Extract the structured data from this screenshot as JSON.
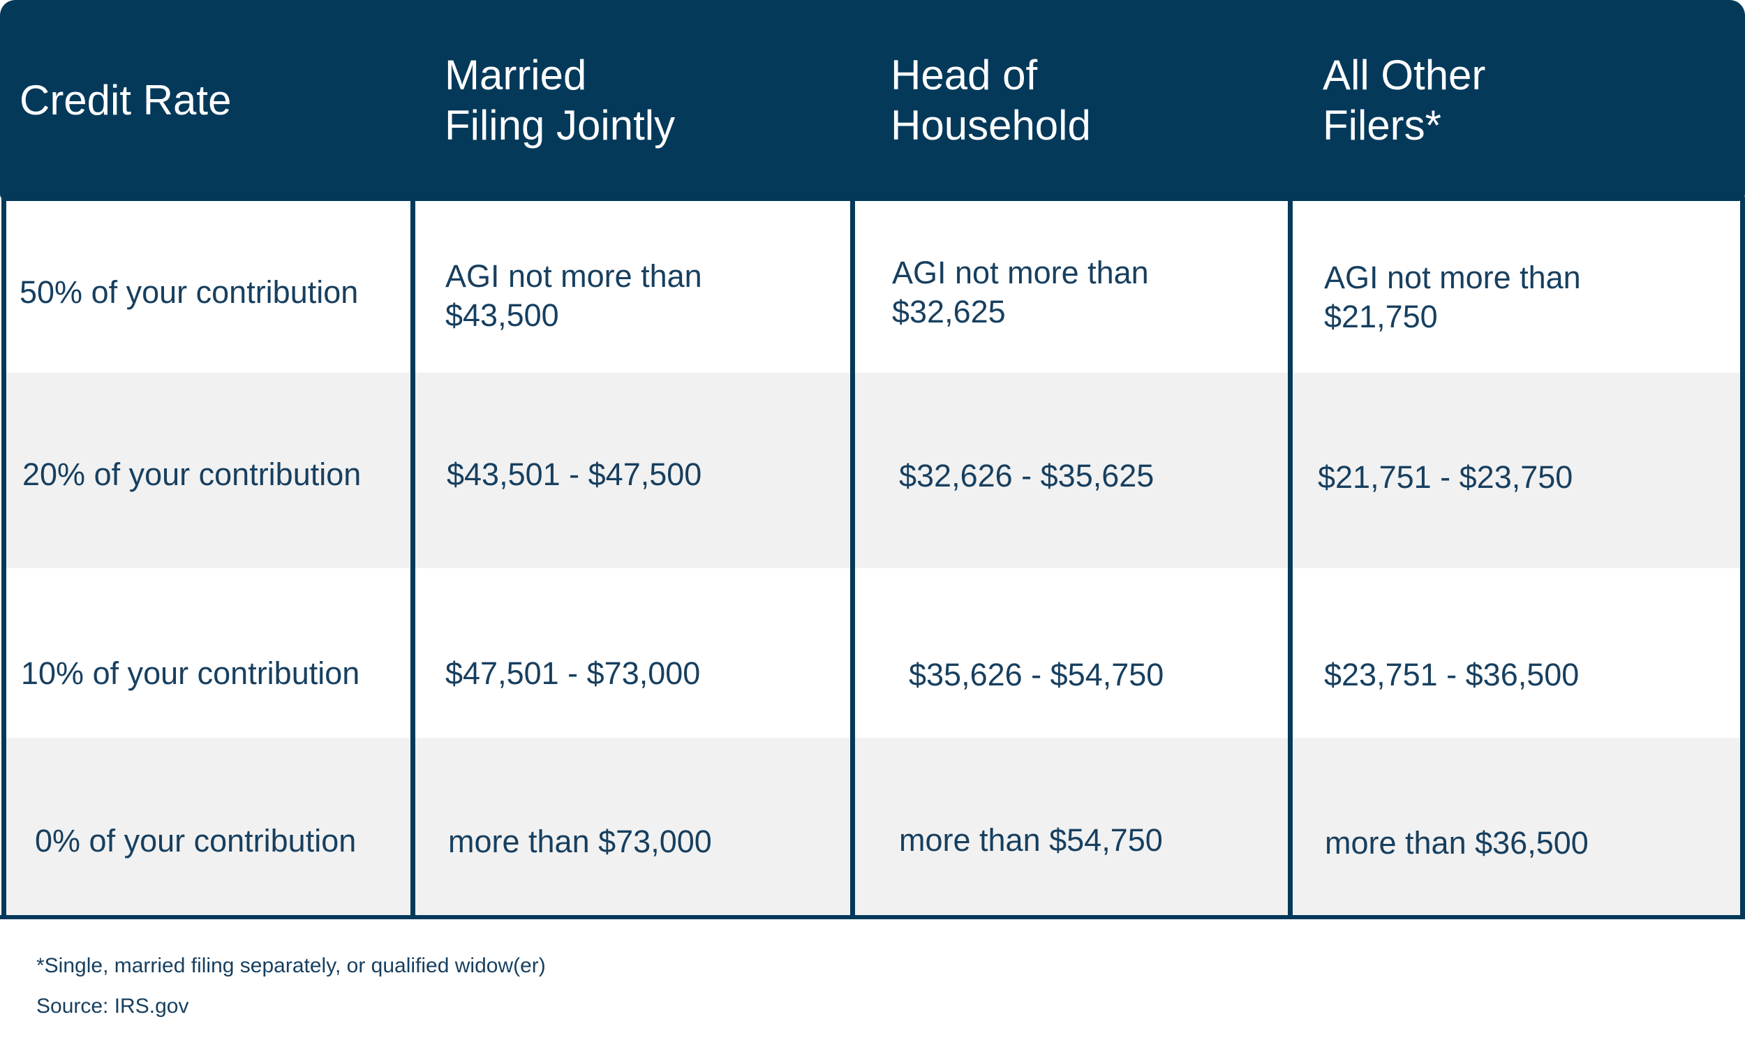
{
  "headers": [
    "Credit Rate",
    "Married\nFiling Jointly",
    "Head of\nHousehold",
    "All Other\nFilers*"
  ],
  "rows": [
    [
      "50% of your contribution",
      "AGI not more than\n$43,500",
      "AGI not more than\n$32,625",
      "AGI not more than\n$21,750"
    ],
    [
      "20% of your contribution",
      "$43,501 - $47,500",
      "$32,626 - $35,625",
      "$21,751 - $23,750"
    ],
    [
      "10% of your contribution",
      "$47,501 - $73,000",
      "$35,626 - $54,750",
      "$23,751 - $36,500"
    ],
    [
      "0% of your contribution",
      "more than $73,000",
      "more than $54,750",
      "more than $36,500"
    ]
  ],
  "footnote": "*Single, married filing separately, or qualified widow(er)",
  "source": "Source: IRS.gov",
  "colors": {
    "header_bg": "#04395a",
    "text": "#173f5f",
    "alt_row": "#f1f1f1"
  }
}
